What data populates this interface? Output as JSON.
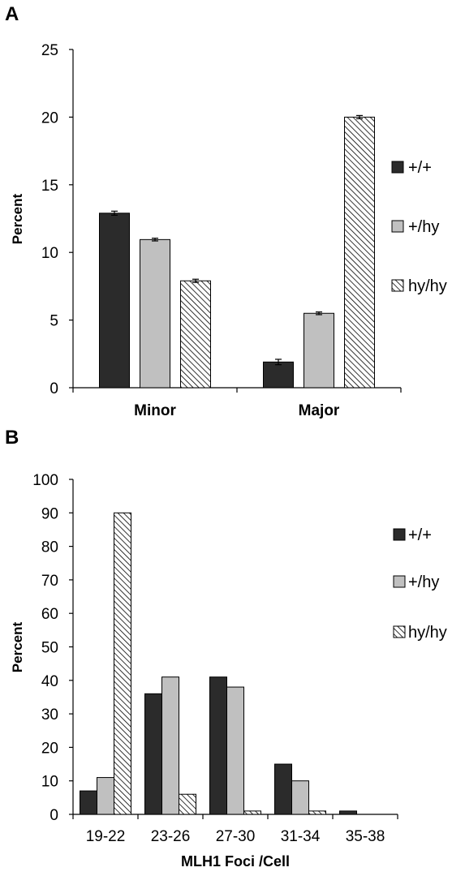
{
  "chart_data": [
    {
      "panel_label": "A",
      "type": "bar",
      "ylabel": "Percent",
      "xlabel": "",
      "ylim": [
        0,
        25
      ],
      "yticks": [
        "0",
        "5",
        "10",
        "15",
        "20",
        "25"
      ],
      "categories": [
        "Minor",
        "Major"
      ],
      "category_bold": true,
      "error_bars": true,
      "legend_position": "right",
      "series": [
        {
          "name": "+/+",
          "values": [
            12.9,
            1.9
          ],
          "errors": [
            0.15,
            0.2
          ],
          "fill": "solid-dark"
        },
        {
          "name": "+/hy",
          "values": [
            10.95,
            5.5
          ],
          "errors": [
            0.1,
            0.1
          ],
          "fill": "solid-light"
        },
        {
          "name": "hy/hy",
          "values": [
            7.9,
            20.0
          ],
          "errors": [
            0.12,
            0.12
          ],
          "fill": "hatched"
        }
      ]
    },
    {
      "panel_label": "B",
      "type": "bar",
      "ylabel": "Percent",
      "xlabel": "MLH1 Foci /Cell",
      "ylim": [
        0,
        100
      ],
      "yticks": [
        "0",
        "10",
        "20",
        "30",
        "40",
        "50",
        "60",
        "70",
        "80",
        "90",
        "100"
      ],
      "categories": [
        "19-22",
        "23-26",
        "27-30",
        "31-34",
        "35-38"
      ],
      "category_bold": false,
      "error_bars": false,
      "legend_position": "right",
      "series": [
        {
          "name": "+/+",
          "values": [
            7,
            36,
            41,
            15,
            1
          ],
          "fill": "solid-dark"
        },
        {
          "name": "+/hy",
          "values": [
            11,
            41,
            38,
            10,
            0
          ],
          "fill": "solid-light"
        },
        {
          "name": "hy/hy",
          "values": [
            90,
            6,
            1,
            1,
            0
          ],
          "fill": "hatched"
        }
      ]
    }
  ],
  "colors": {
    "dark": "#2b2b2b",
    "light": "#c0c0c0",
    "hatch_bg": "#ffffff",
    "hatch_line": "#000000",
    "axis": "#000000"
  }
}
